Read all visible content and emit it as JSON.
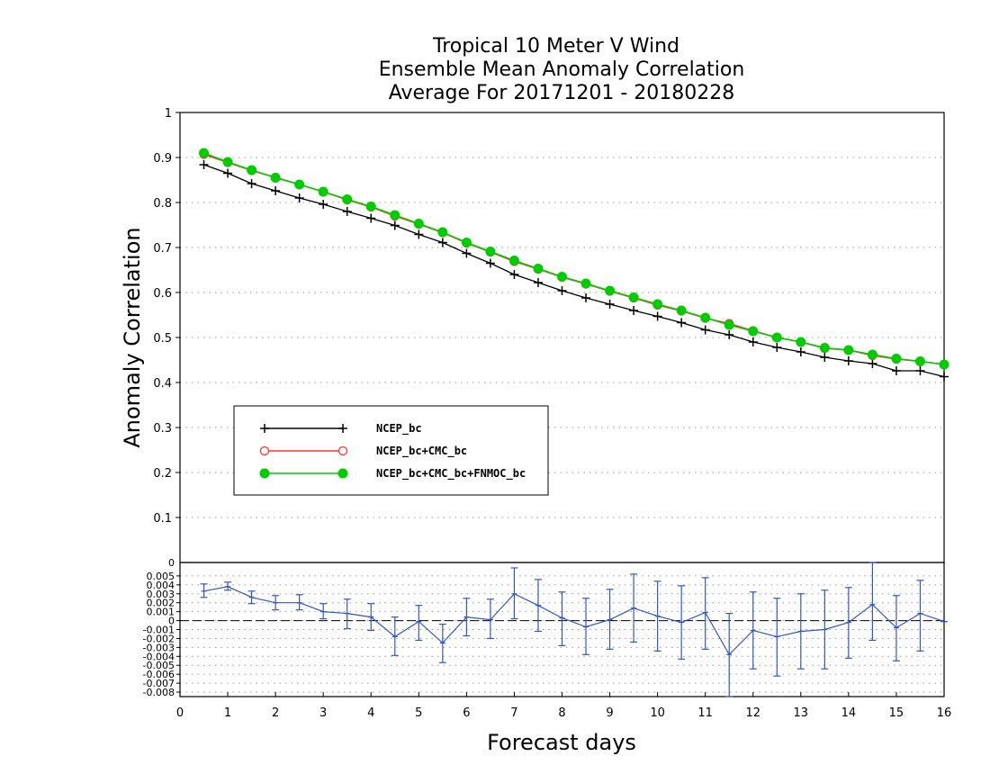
{
  "title_lines": [
    "Tropical 10 Meter V Wind",
    "Ensemble Mean Anomaly Correlation",
    "Average For 20171201 - 20180228"
  ],
  "chart_data": [
    {
      "type": "line",
      "xlabel": "Forecast days",
      "ylabel": "Anomaly Correlation",
      "xlim": [
        0,
        16
      ],
      "ylim": [
        0,
        1
      ],
      "x_ticks": [
        "0",
        "1",
        "2",
        "3",
        "4",
        "5",
        "6",
        "7",
        "8",
        "9",
        "10",
        "11",
        "12",
        "13",
        "14",
        "15",
        "16"
      ],
      "y_ticks": [
        "0.1",
        "0.2",
        "0.3",
        "0.4",
        "0.5",
        "0.6",
        "0.7",
        "0.8",
        "0.9",
        "1"
      ],
      "grid": "dotted horizontal",
      "legend_position": "left-middle",
      "x": [
        0.5,
        1,
        1.5,
        2,
        2.5,
        3,
        3.5,
        4,
        4.5,
        5,
        5.5,
        6,
        6.5,
        7,
        7.5,
        8,
        8.5,
        9,
        9.5,
        10,
        10.5,
        11,
        11.5,
        12,
        12.5,
        13,
        13.5,
        14,
        14.5,
        15,
        15.5,
        16
      ],
      "series": [
        {
          "name": "NCEP_bc",
          "color": "#000000",
          "marker": "plus",
          "values": [
            0.884,
            0.865,
            0.842,
            0.826,
            0.81,
            0.796,
            0.78,
            0.765,
            0.749,
            0.729,
            0.711,
            0.687,
            0.665,
            0.64,
            0.622,
            0.604,
            0.588,
            0.574,
            0.56,
            0.547,
            0.533,
            0.517,
            0.506,
            0.49,
            0.478,
            0.468,
            0.456,
            0.448,
            0.442,
            0.426,
            0.426,
            0.413
          ]
        },
        {
          "name": "NCEP_bc+CMC_bc",
          "color": "#ff3333",
          "marker": "open-circle",
          "values": [
            0.907,
            0.889,
            0.871,
            0.856,
            0.84,
            0.824,
            0.806,
            0.79,
            0.77,
            0.752,
            0.733,
            0.71,
            0.69,
            0.669,
            0.652,
            0.634,
            0.619,
            0.603,
            0.588,
            0.572,
            0.559,
            0.543,
            0.531,
            0.515,
            0.5,
            0.49,
            0.476,
            0.472,
            0.46,
            0.452,
            0.447,
            0.44
          ]
        },
        {
          "name": "NCEP_bc+CMC_bc+FNMOC_bc",
          "color": "#00cc00",
          "marker": "filled-circle",
          "values": [
            0.91,
            0.89,
            0.872,
            0.855,
            0.84,
            0.824,
            0.807,
            0.791,
            0.772,
            0.753,
            0.734,
            0.711,
            0.691,
            0.671,
            0.653,
            0.635,
            0.62,
            0.604,
            0.589,
            0.574,
            0.56,
            0.544,
            0.528,
            0.514,
            0.5,
            0.49,
            0.477,
            0.472,
            0.462,
            0.453,
            0.447,
            0.44
          ]
        }
      ]
    },
    {
      "type": "line",
      "xlim": [
        0,
        16
      ],
      "ylim": [
        -0.0085,
        0.0065
      ],
      "y_ticks": [
        "0.005",
        "0.004",
        "0.003",
        "0.002",
        "0.001",
        "0",
        "-0.001",
        "-0.002",
        "-0.003",
        "-0.004",
        "-0.005",
        "-0.006",
        "-0.007",
        "-0.008"
      ],
      "top_label": "0",
      "zero_line": "dashed",
      "color": "#3355cc",
      "x": [
        0.5,
        1,
        1.5,
        2,
        2.5,
        3,
        3.5,
        4,
        4.5,
        5,
        5.5,
        6,
        6.5,
        7,
        7.5,
        8,
        8.5,
        9,
        9.5,
        10,
        10.5,
        11,
        11.5,
        12,
        12.5,
        13,
        13.5,
        14,
        14.5,
        15,
        15.5,
        16
      ],
      "values": [
        0.0033,
        0.0038,
        0.0026,
        0.002,
        0.002,
        0.001,
        0.0008,
        0.0004,
        -0.0018,
        -0.0001,
        -0.0025,
        0.0004,
        0.0001,
        0.003,
        0.0017,
        0.0003,
        -0.0007,
        0.0001,
        0.0014,
        0.0005,
        -0.0002,
        0.0009,
        -0.0038,
        -0.0011,
        -0.0018,
        -0.0012,
        -0.001,
        -0.0002,
        0.0018,
        -0.0008,
        0.0008,
        -0.0001
      ],
      "error_low": [
        0.0026,
        0.0034,
        0.0019,
        0.0012,
        0.0012,
        0.0002,
        -0.0009,
        -0.0011,
        -0.0039,
        -0.0022,
        -0.0047,
        -0.0017,
        -0.002,
        0.0002,
        -0.0012,
        -0.0028,
        -0.0038,
        -0.0032,
        -0.0024,
        -0.0034,
        -0.0043,
        -0.0032,
        -0.0085,
        -0.0054,
        -0.0062,
        -0.0054,
        -0.0054,
        -0.0042,
        -0.0022,
        -0.0045,
        -0.0034,
        -0.0001
      ],
      "error_high": [
        0.0041,
        0.0043,
        0.0033,
        0.0028,
        0.0029,
        0.0019,
        0.0024,
        0.0019,
        0.0004,
        0.0017,
        -0.0004,
        0.0025,
        0.0024,
        0.0059,
        0.0046,
        0.0032,
        0.0025,
        0.0035,
        0.0052,
        0.0044,
        0.0039,
        0.0048,
        0.0008,
        0.0032,
        0.0025,
        0.003,
        0.0034,
        0.0037,
        0.0065,
        0.0028,
        0.0045,
        -0.0001
      ]
    }
  ]
}
